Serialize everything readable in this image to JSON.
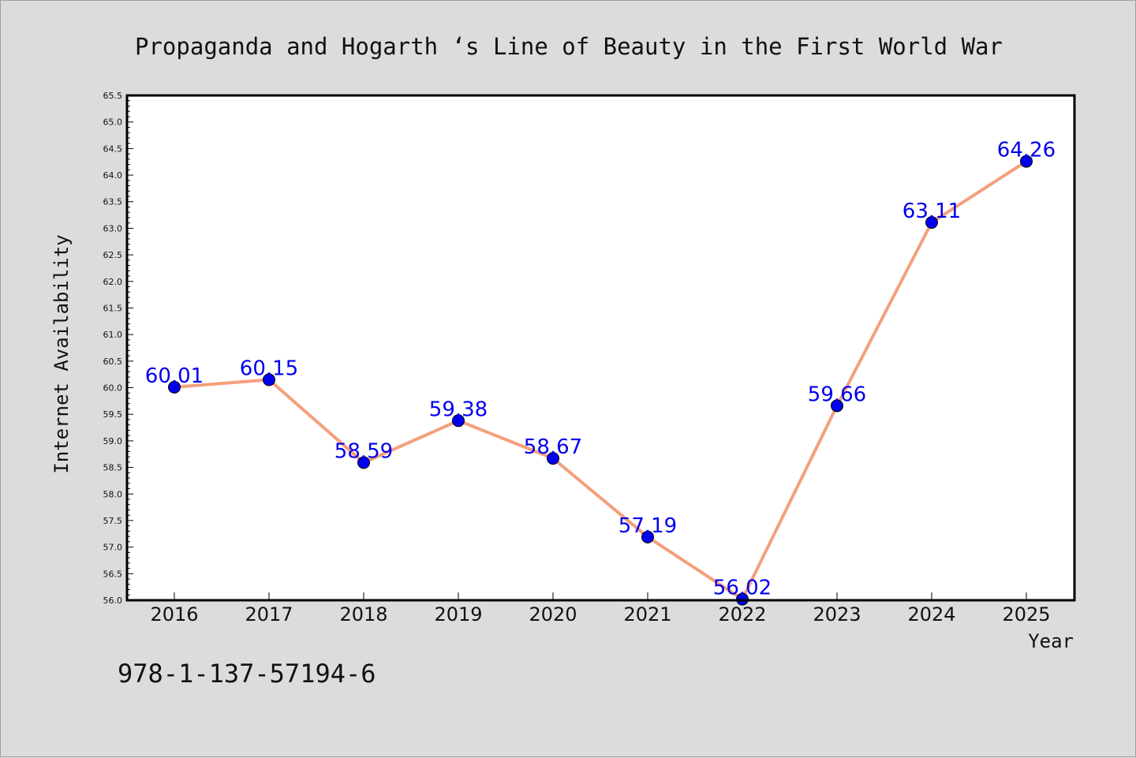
{
  "chart_data": {
    "type": "line",
    "title": "Propaganda and Hogarth ‘s Line of Beauty in the First World War",
    "xlabel": "Year",
    "ylabel": "Internet Availability",
    "x": [
      "2016",
      "2017",
      "2018",
      "2019",
      "2020",
      "2021",
      "2022",
      "2023",
      "2024",
      "2025"
    ],
    "series": [
      {
        "values": [
          60.01,
          60.15,
          58.59,
          59.38,
          58.67,
          57.19,
          56.02,
          59.66,
          63.11,
          64.26
        ],
        "labels": [
          "60.01",
          "60.15",
          "58.59",
          "59.38",
          "58.67",
          "57.19",
          "56.02",
          "59.66",
          "63.11",
          "64.26"
        ],
        "line_color": "#f4a07c",
        "marker_color": "#0000ee",
        "label_color": "#0000ee"
      }
    ],
    "ylim": [
      56.0,
      65.5
    ],
    "yticks": [
      "56.0",
      "56.5",
      "57.0",
      "57.5",
      "58.0",
      "58.5",
      "59.0",
      "59.5",
      "60.0",
      "60.5",
      "61.0",
      "61.5",
      "62.0",
      "62.5",
      "63.0",
      "63.5",
      "64.0",
      "64.5",
      "65.0",
      "65.5"
    ],
    "grid": false,
    "legend": "none"
  },
  "footnote": "978-1-137-57194-6",
  "colors": {
    "background": "#dcdcdc",
    "plot_background": "#ffffff"
  }
}
